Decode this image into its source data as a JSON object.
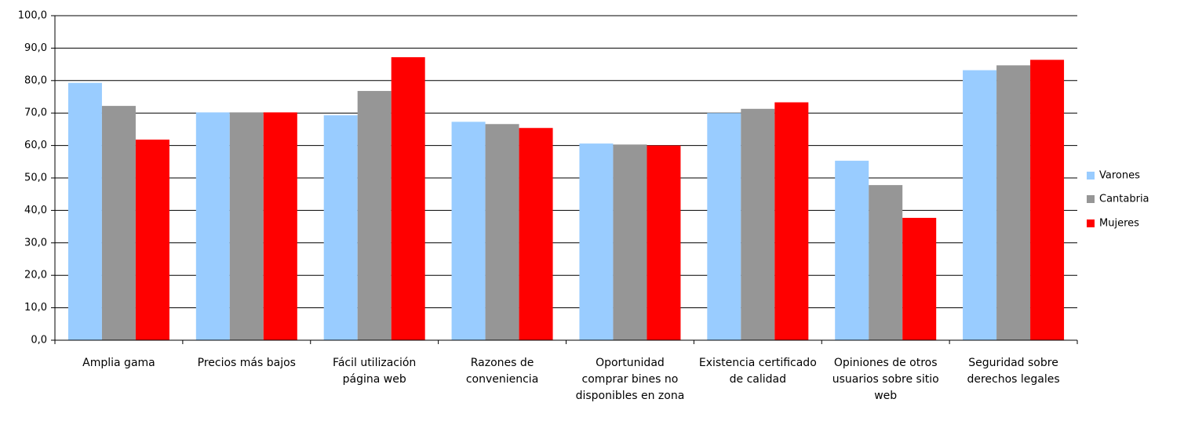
{
  "chart_data": {
    "type": "bar",
    "categories": [
      "Amplia gama",
      "Precios más bajos",
      "Fácil utilización página web",
      "Razones de conveniencia",
      "Oportunidad comprar bines no disponibles en zona",
      "Existencia certificado de calidad",
      "Opiniones de otros usuarios sobre sitio web",
      "Seguridad sobre derechos legales"
    ],
    "series": [
      {
        "name": "Varones",
        "color": "#99ccff",
        "values": [
          79.3,
          70.2,
          69.3,
          67.3,
          60.6,
          70.0,
          55.3,
          83.2
        ]
      },
      {
        "name": "Cantabria",
        "color": "#969696",
        "values": [
          72.2,
          70.2,
          76.8,
          66.6,
          60.3,
          71.3,
          47.8,
          84.7
        ]
      },
      {
        "name": "Mujeres",
        "color": "#ff0000",
        "values": [
          61.8,
          70.2,
          87.2,
          65.4,
          60.0,
          73.3,
          37.7,
          86.4
        ]
      }
    ],
    "ylim": [
      0,
      100
    ],
    "yticks": [
      {
        "value": 0,
        "label": "0,0"
      },
      {
        "value": 10,
        "label": "10,0"
      },
      {
        "value": 20,
        "label": "20,0"
      },
      {
        "value": 30,
        "label": "30,0"
      },
      {
        "value": 40,
        "label": "40,0"
      },
      {
        "value": 50,
        "label": "50,0"
      },
      {
        "value": 60,
        "label": "60,0"
      },
      {
        "value": 70,
        "label": "70,0"
      },
      {
        "value": 80,
        "label": "80,0"
      },
      {
        "value": 90,
        "label": "90,0"
      },
      {
        "value": 100,
        "label": "100,0"
      }
    ],
    "grid": true,
    "legend": "right"
  }
}
